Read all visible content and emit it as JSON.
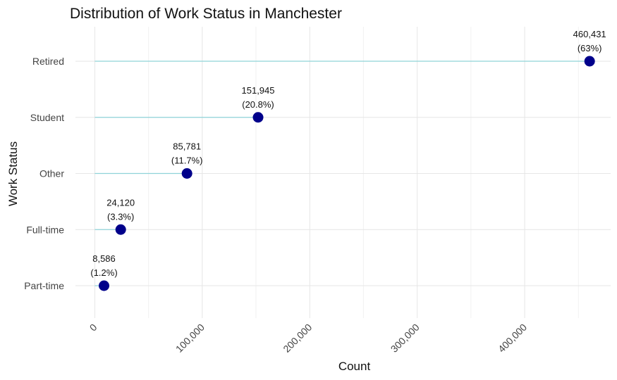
{
  "chart_data": {
    "type": "lollipop",
    "title": "Distribution of Work Status in Manchester",
    "xlabel": "Count",
    "ylabel": "Work Status",
    "categories": [
      "Part-time",
      "Full-time",
      "Other",
      "Student",
      "Retired"
    ],
    "values": [
      8586,
      24120,
      85781,
      151945,
      460431
    ],
    "value_labels": [
      "8,586",
      "24,120",
      "85,781",
      "151,945",
      "460,431"
    ],
    "percent_labels": [
      "(1.2%)",
      "(3.3%)",
      "(11.7%)",
      "(20.8%)",
      "(63%)"
    ],
    "xlim": [
      -18000,
      480000
    ],
    "xticks": [
      0,
      100000,
      200000,
      300000,
      400000
    ],
    "xtick_labels": [
      "0",
      "100,000",
      "200,000",
      "300,000",
      "400,000"
    ],
    "grid": true,
    "colors": {
      "point": "#00008b",
      "stem": "#8fd3d8"
    }
  }
}
